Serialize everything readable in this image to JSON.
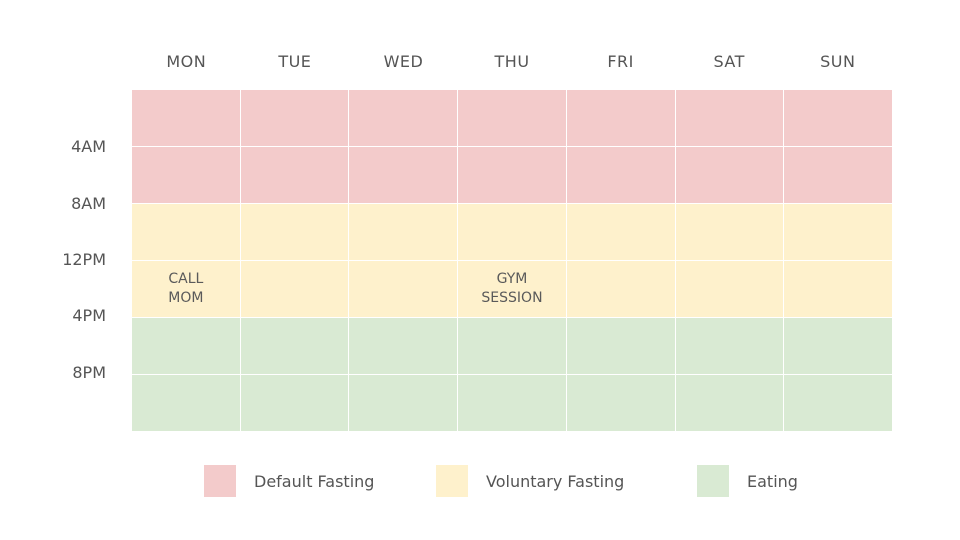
{
  "colors": {
    "default_fasting": "#f3cbcb",
    "voluntary_fasting": "#fef1cc",
    "eating": "#d9ead3"
  },
  "days": [
    "MON",
    "TUE",
    "WED",
    "THU",
    "FRI",
    "SAT",
    "SUN"
  ],
  "time_labels": [
    "4AM",
    "8AM",
    "12PM",
    "4PM",
    "8PM"
  ],
  "rows": [
    {
      "phase": "default_fasting",
      "cells": [
        "",
        "",
        "",
        "",
        "",
        "",
        ""
      ]
    },
    {
      "phase": "default_fasting",
      "cells": [
        "",
        "",
        "",
        "",
        "",
        "",
        ""
      ]
    },
    {
      "phase": "voluntary_fasting",
      "cells": [
        "",
        "",
        "",
        "",
        "",
        "",
        ""
      ]
    },
    {
      "phase": "voluntary_fasting",
      "cells": [
        "CALL\nMOM",
        "",
        "",
        "GYM\nSESSION",
        "",
        "",
        ""
      ]
    },
    {
      "phase": "eating",
      "cells": [
        "",
        "",
        "",
        "",
        "",
        "",
        ""
      ]
    },
    {
      "phase": "eating",
      "cells": [
        "",
        "",
        "",
        "",
        "",
        "",
        ""
      ]
    }
  ],
  "legend": [
    {
      "label": "Default Fasting",
      "phase": "default_fasting"
    },
    {
      "label": "Voluntary Fasting",
      "phase": "voluntary_fasting"
    },
    {
      "label": "Eating",
      "phase": "eating"
    }
  ]
}
